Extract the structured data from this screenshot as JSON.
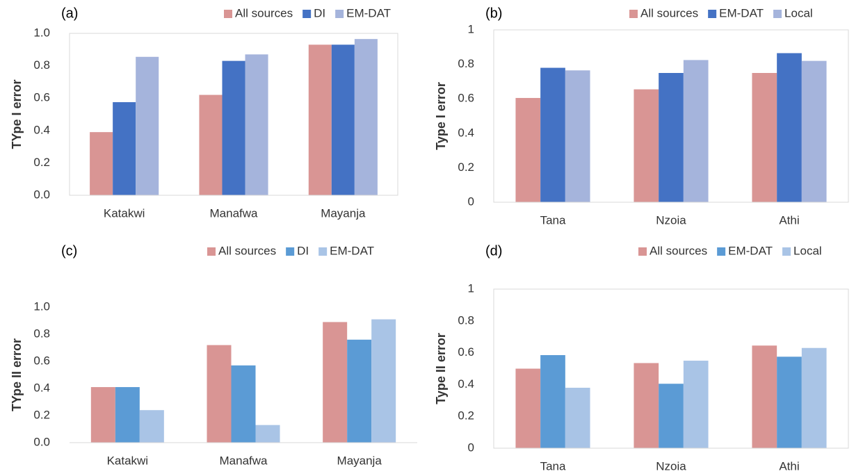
{
  "chart_data": [
    {
      "type": "bar",
      "title": "(a)",
      "y_label": "TYpe I error",
      "categories": [
        "Katakwi",
        "Manafwa",
        "Mayanja"
      ],
      "series": [
        {
          "name": "All sources",
          "color": "#d99594",
          "values": [
            0.39,
            0.62,
            0.93
          ]
        },
        {
          "name": "DI",
          "color": "#4472c4",
          "values": [
            0.575,
            0.83,
            0.93
          ]
        },
        {
          "name": "EM-DAT",
          "color": "#a5b4dc",
          "values": [
            0.855,
            0.87,
            0.965
          ]
        }
      ],
      "ylim": [
        0,
        1
      ],
      "yticks": [
        {
          "value": 0,
          "label": "0.0"
        },
        0.2,
        0.4,
        0.6,
        0.8,
        {
          "value": 1,
          "label": "1.0"
        }
      ],
      "frame": true,
      "legend": "top"
    },
    {
      "type": "bar",
      "title": "(b)",
      "y_label": "Type I error",
      "categories": [
        "Tana",
        "Nzoia",
        "Athi"
      ],
      "series": [
        {
          "name": "All sources",
          "color": "#d99594",
          "values": [
            0.605,
            0.655,
            0.75
          ]
        },
        {
          "name": "EM-DAT",
          "color": "#4472c4",
          "values": [
            0.78,
            0.75,
            0.865
          ]
        },
        {
          "name": "Local",
          "color": "#a5b4dc",
          "values": [
            0.765,
            0.825,
            0.82
          ]
        }
      ],
      "ylim": [
        0,
        1
      ],
      "yticks": [
        0,
        0.2,
        0.4,
        0.6,
        0.8,
        1
      ],
      "frame": true,
      "legend": "top"
    },
    {
      "type": "bar",
      "title": "(c)",
      "y_label": "TYpe II error",
      "categories": [
        "Katakwi",
        "Manafwa",
        "Mayanja"
      ],
      "series": [
        {
          "name": "All sources",
          "color": "#d99594",
          "values": [
            0.41,
            0.72,
            0.89
          ]
        },
        {
          "name": "DI",
          "color": "#5b9bd5",
          "values": [
            0.41,
            0.57,
            0.76
          ]
        },
        {
          "name": "EM-DAT",
          "color": "#a9c4e6",
          "values": [
            0.24,
            0.13,
            0.91
          ]
        }
      ],
      "ylim": [
        0,
        1
      ],
      "yticks": [
        {
          "value": 0,
          "label": "0.0"
        },
        0.2,
        0.4,
        0.6,
        0.8,
        {
          "value": 1,
          "label": "1.0"
        }
      ],
      "frame": false,
      "legend": "top"
    },
    {
      "type": "bar",
      "title": "(d)",
      "y_label": "Type II error",
      "categories": [
        "Tana",
        "Nzoia",
        "Athi"
      ],
      "series": [
        {
          "name": "All sources",
          "color": "#d99594",
          "values": [
            0.5,
            0.535,
            0.645
          ]
        },
        {
          "name": "EM-DAT",
          "color": "#5b9bd5",
          "values": [
            0.585,
            0.405,
            0.575
          ]
        },
        {
          "name": "Local",
          "color": "#a9c4e6",
          "values": [
            0.38,
            0.55,
            0.63
          ]
        }
      ],
      "ylim": [
        0,
        1
      ],
      "yticks": [
        0,
        0.2,
        0.4,
        0.6,
        0.8,
        1
      ],
      "frame": true,
      "legend": "top"
    }
  ]
}
